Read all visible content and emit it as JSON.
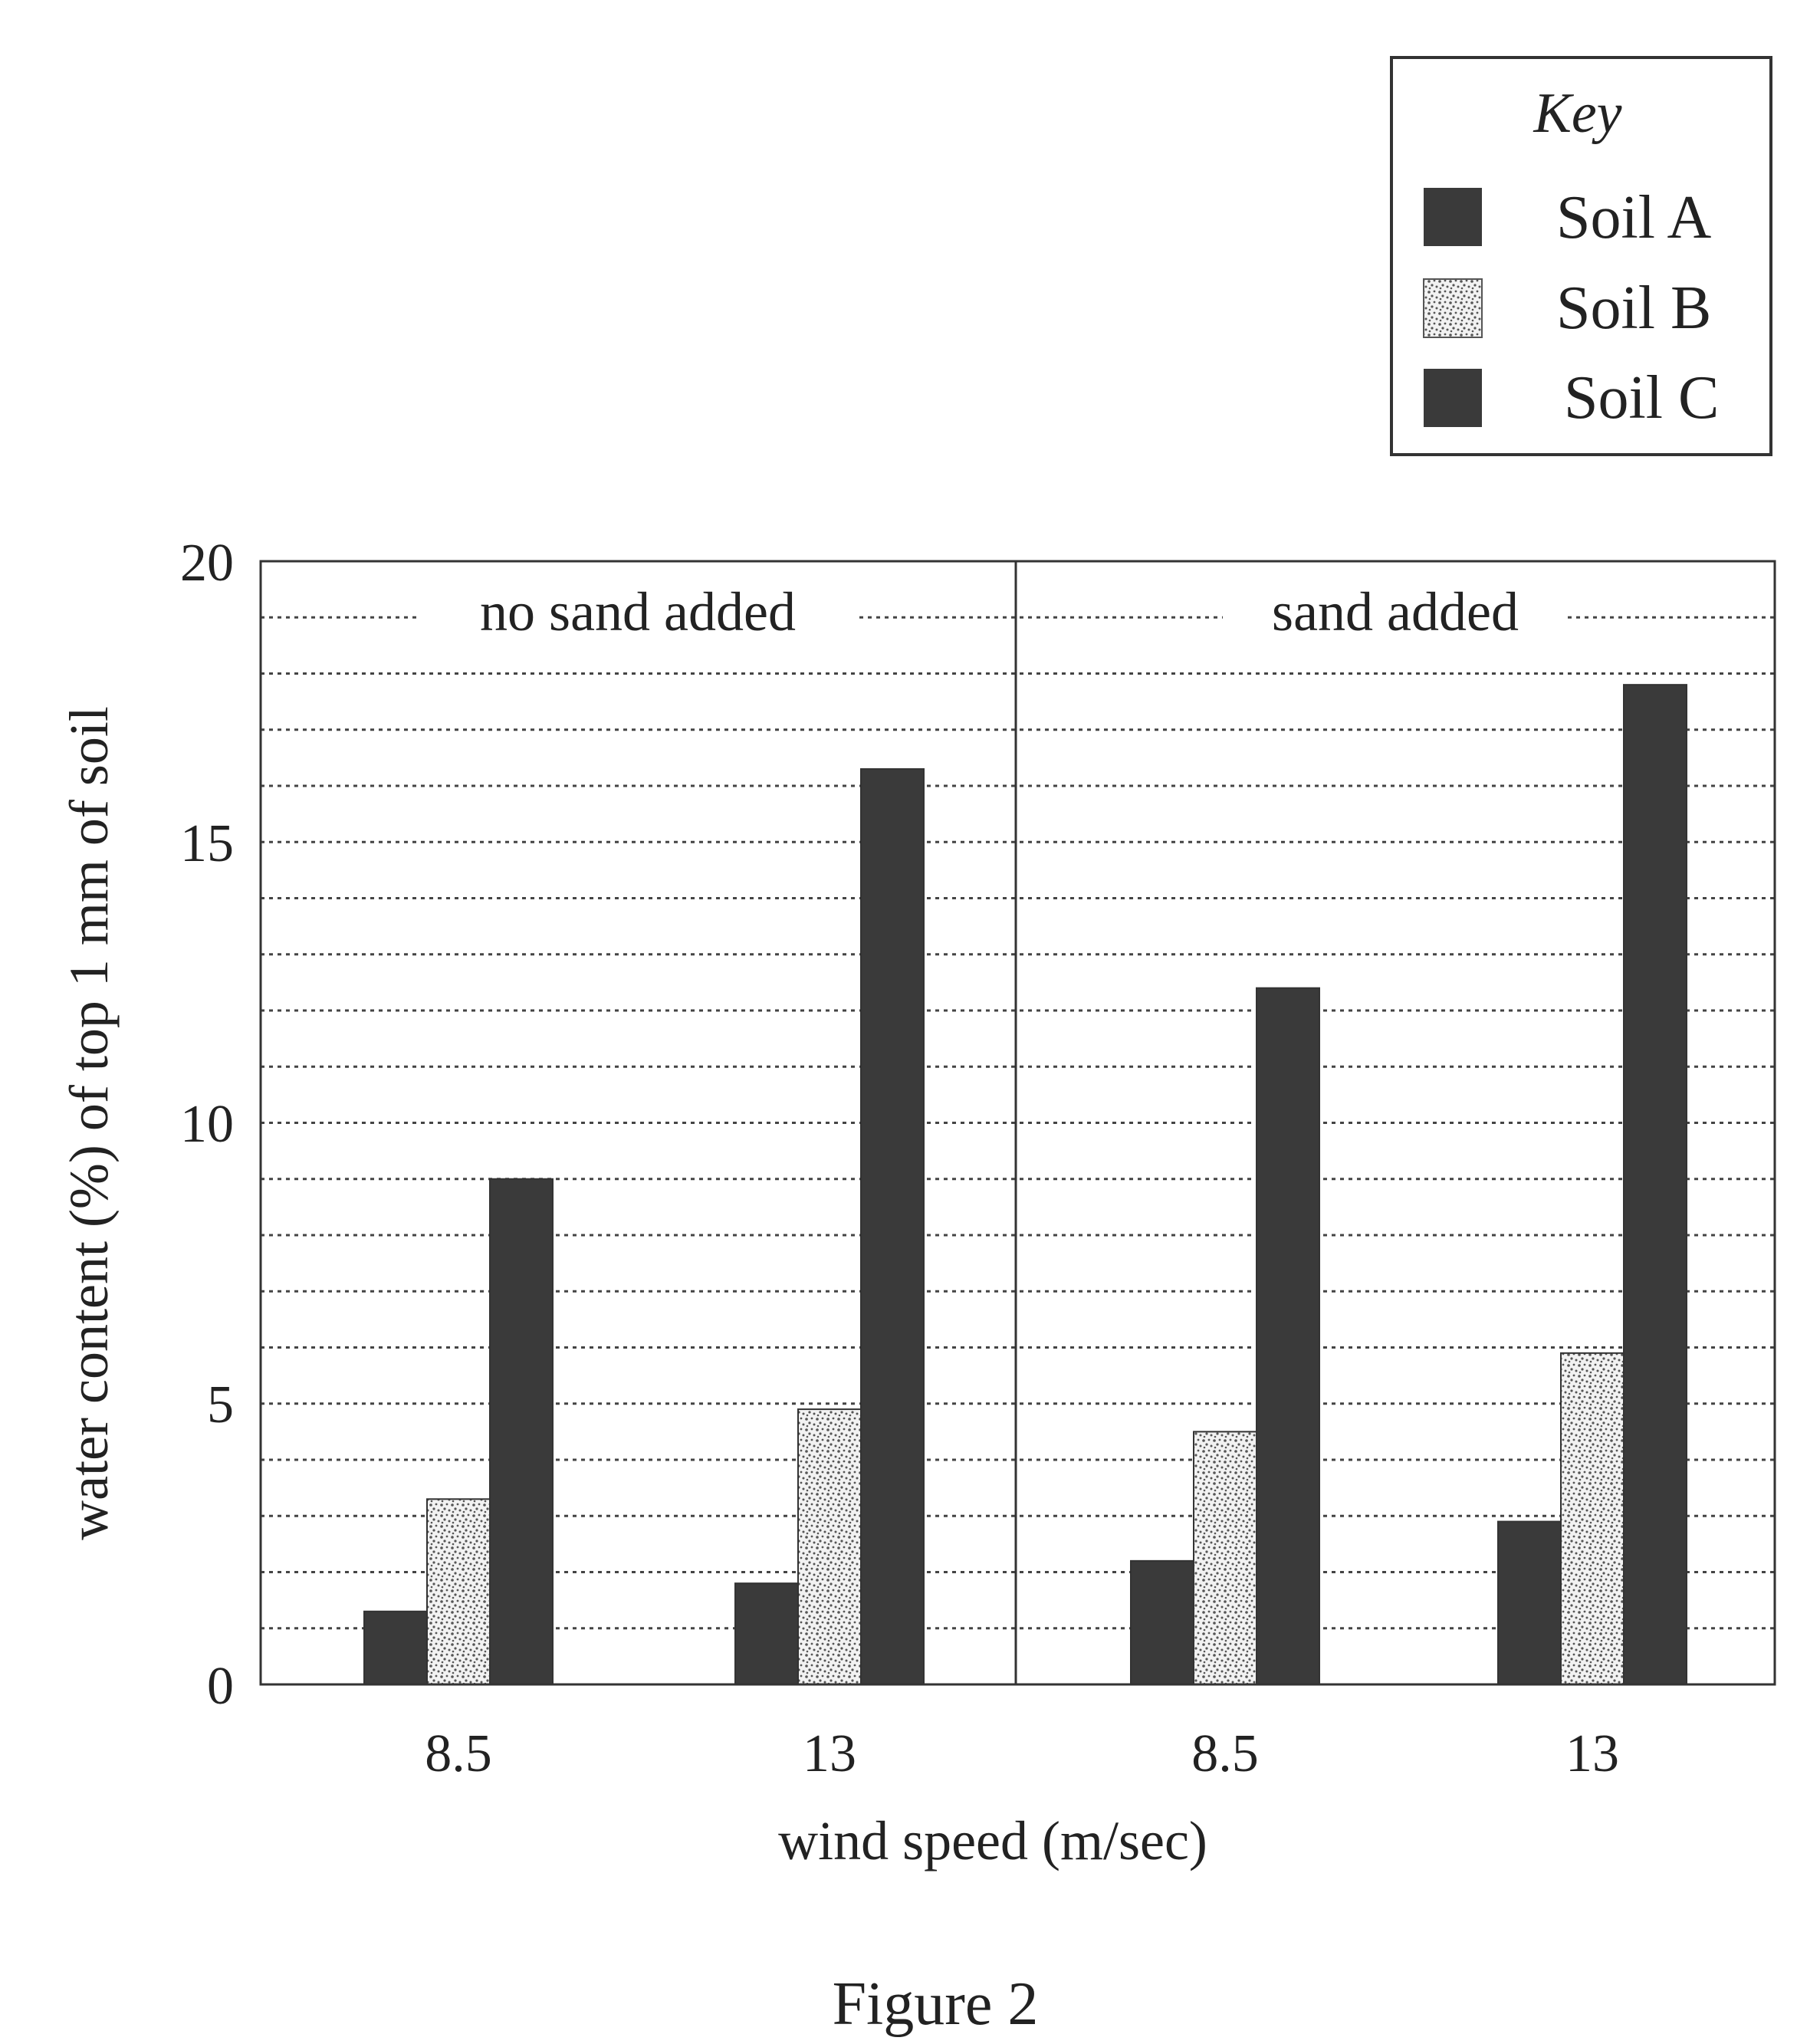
{
  "chart_data": {
    "type": "bar",
    "title": "",
    "caption": "Figure 2",
    "ylabel": "water content (%) of top 1 mm of soil",
    "xlabel": "wind speed (m/sec)",
    "ylim": [
      0,
      20
    ],
    "yticks": [
      0,
      5,
      10,
      15,
      20
    ],
    "minor_gridline_step": 1,
    "grid": true,
    "legend": {
      "title": "Key",
      "position": "top-right",
      "entries": [
        {
          "name": "Soil A",
          "pattern": "solid"
        },
        {
          "name": "Soil B",
          "pattern": "speckled"
        },
        {
          "name": "Soil C",
          "pattern": "solid"
        }
      ]
    },
    "panels": [
      {
        "label": "no sand added",
        "categories": [
          "8.5",
          "13"
        ],
        "series": [
          {
            "name": "Soil A",
            "values": [
              1.3,
              1.8
            ]
          },
          {
            "name": "Soil B",
            "values": [
              3.3,
              4.9
            ]
          },
          {
            "name": "Soil C",
            "values": [
              9.0,
              16.3
            ]
          }
        ]
      },
      {
        "label": "sand added",
        "categories": [
          "8.5",
          "13"
        ],
        "series": [
          {
            "name": "Soil A",
            "values": [
              2.2,
              2.9
            ]
          },
          {
            "name": "Soil B",
            "values": [
              4.5,
              5.9
            ]
          },
          {
            "name": "Soil C",
            "values": [
              12.4,
              17.8
            ]
          }
        ]
      }
    ],
    "colors": {
      "bar_dark": "#3a3a3a",
      "speckle_bg": "#f2f2f2",
      "speckle_dot": "#555555"
    }
  }
}
